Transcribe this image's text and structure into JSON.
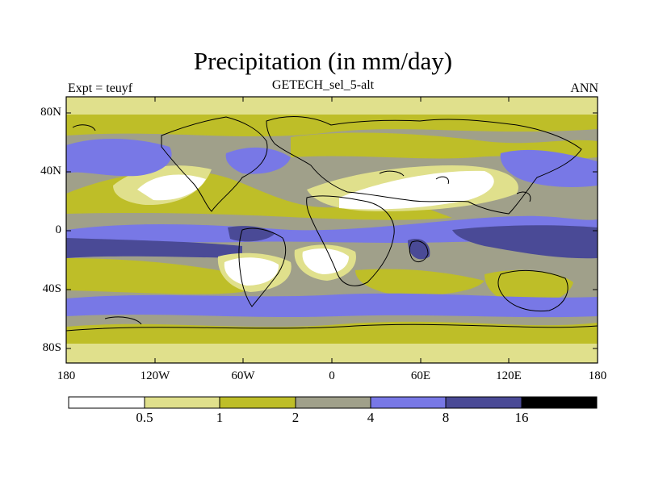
{
  "title": "Precipitation (in mm/day)",
  "subtitle": "GETECH_sel_5-alt",
  "left_note": "Expt = teuyf",
  "right_note": "ANN",
  "lat_ticks": [
    "80N",
    "40N",
    "0",
    "40S",
    "80S"
  ],
  "lon_ticks": [
    "180",
    "120W",
    "60W",
    "0",
    "60E",
    "120E",
    "180"
  ],
  "colorbar": {
    "levels": [
      "0.5",
      "1",
      "2",
      "4",
      "8",
      "16"
    ],
    "colors": [
      "#ffffff",
      "#e0e08c",
      "#bebe28",
      "#a0a08a",
      "#7878e6",
      "#4a4a96",
      "#000000"
    ]
  }
}
